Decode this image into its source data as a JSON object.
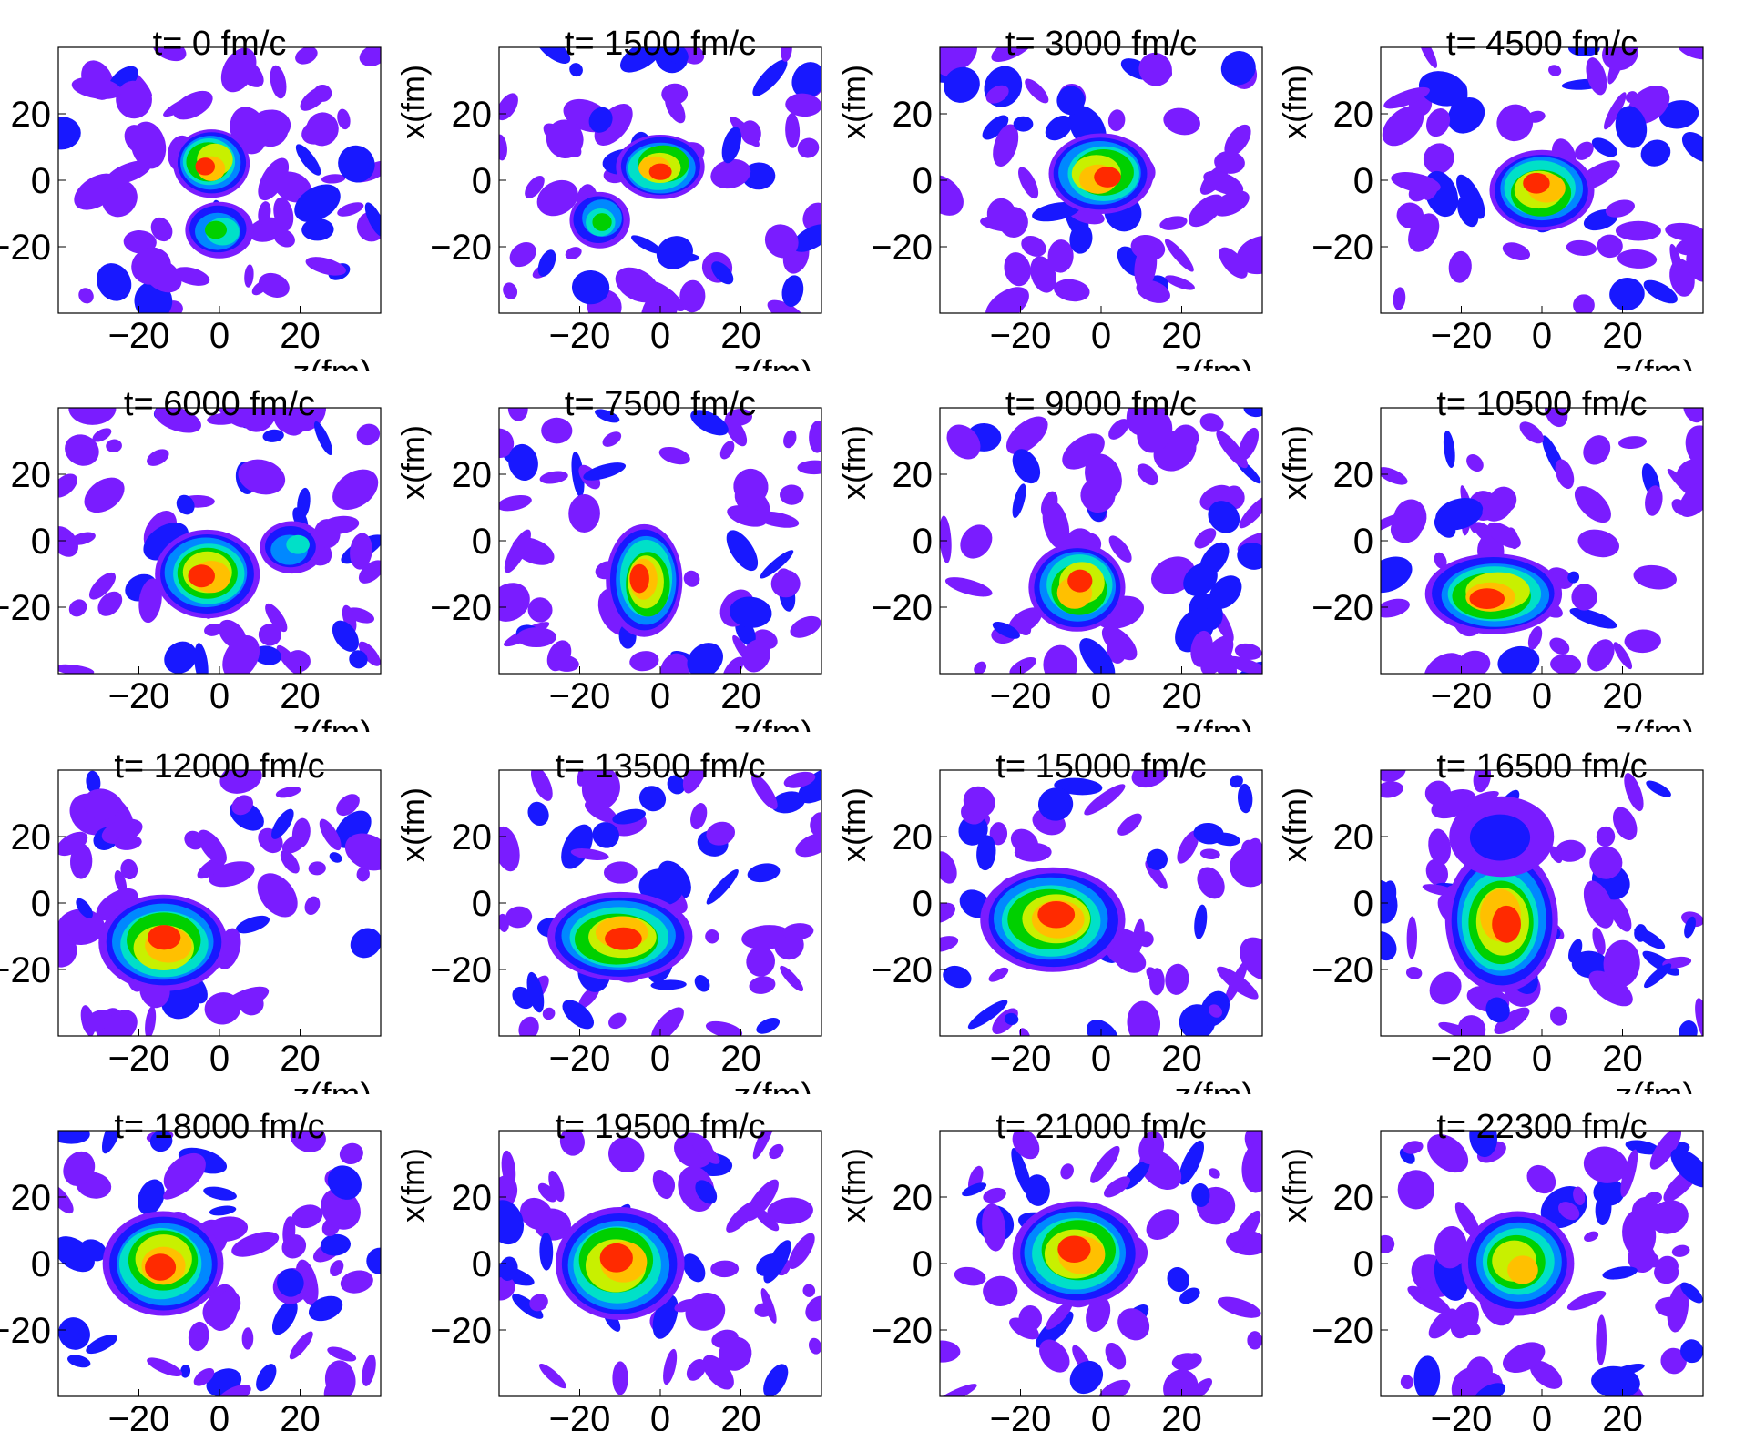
{
  "chart_data": {
    "type": "heatmap",
    "rows": 4,
    "cols": 4,
    "xlabel": "z(fm)",
    "ylabel": "x(fm)",
    "xlim": [
      -40,
      40
    ],
    "ylim": [
      -40,
      40
    ],
    "xticks": [
      "−20",
      "0",
      "20"
    ],
    "yticks": [
      "20",
      "0",
      "−20"
    ],
    "colors": {
      "level1": "#7a1cff",
      "level2": "#1818ff",
      "level3": "#0088ff",
      "level4": "#00e0c8",
      "level5": "#00d000",
      "level6": "#c8f000",
      "level7": "#ffc000",
      "level8": "#ff2a00"
    },
    "panels": [
      {
        "title": "t= 0 fm/c",
        "blobs": [
          {
            "z": -2,
            "x": 5,
            "w": 13,
            "h": 11,
            "peak": 8
          },
          {
            "z": 0,
            "x": -15,
            "w": 11,
            "h": 8,
            "peak": 5
          }
        ]
      },
      {
        "title": "t= 1500 fm/c",
        "blobs": [
          {
            "z": 0,
            "x": 4,
            "w": 16,
            "h": 10,
            "peak": 8
          },
          {
            "z": -15,
            "x": -12,
            "w": 9,
            "h": 8,
            "peak": 5
          }
        ]
      },
      {
        "title": "t= 3000 fm/c",
        "blobs": [
          {
            "z": 0,
            "x": 2,
            "w": 20,
            "h": 14,
            "peak": 8
          }
        ]
      },
      {
        "title": "t= 4500 fm/c",
        "blobs": [
          {
            "z": 0,
            "x": -3,
            "w": 20,
            "h": 14,
            "peak": 8
          }
        ]
      },
      {
        "title": "t= 6000 fm/c",
        "blobs": [
          {
            "z": -3,
            "x": -10,
            "w": 20,
            "h": 16,
            "peak": 8
          },
          {
            "z": 18,
            "x": -2,
            "w": 10,
            "h": 7,
            "peak": 4
          }
        ]
      },
      {
        "title": "t= 7500 fm/c",
        "blobs": [
          {
            "z": -4,
            "x": -12,
            "w": 13,
            "h": 22,
            "peak": 8
          }
        ]
      },
      {
        "title": "t= 9000 fm/c",
        "blobs": [
          {
            "z": -6,
            "x": -14,
            "w": 18,
            "h": 16,
            "peak": 8
          }
        ]
      },
      {
        "title": "t= 10500 fm/c",
        "blobs": [
          {
            "z": -12,
            "x": -16,
            "w": 28,
            "h": 14,
            "peak": 8
          }
        ]
      },
      {
        "title": "t= 12000 fm/c",
        "blobs": [
          {
            "z": -14,
            "x": -12,
            "w": 26,
            "h": 18,
            "peak": 8
          }
        ]
      },
      {
        "title": "t= 13500 fm/c",
        "blobs": [
          {
            "z": -10,
            "x": -10,
            "w": 30,
            "h": 16,
            "peak": 8
          }
        ]
      },
      {
        "title": "t= 15000 fm/c",
        "blobs": [
          {
            "z": -12,
            "x": -5,
            "w": 30,
            "h": 20,
            "peak": 8
          }
        ]
      },
      {
        "title": "t= 16500 fm/c",
        "blobs": [
          {
            "z": -10,
            "x": -5,
            "w": 22,
            "h": 30,
            "peak": 8
          },
          {
            "z": -10,
            "x": 20,
            "w": 20,
            "h": 14,
            "peak": 2
          }
        ]
      },
      {
        "title": "t= 18000 fm/c",
        "blobs": [
          {
            "z": -14,
            "x": 0,
            "w": 24,
            "h": 20,
            "peak": 8
          }
        ]
      },
      {
        "title": "t= 19500 fm/c",
        "blobs": [
          {
            "z": -10,
            "x": 0,
            "w": 26,
            "h": 22,
            "peak": 8
          }
        ]
      },
      {
        "title": "t= 21000 fm/c",
        "blobs": [
          {
            "z": -6,
            "x": 3,
            "w": 26,
            "h": 20,
            "peak": 8
          }
        ]
      },
      {
        "title": "t= 22300 fm/c",
        "blobs": [
          {
            "z": -6,
            "x": 0,
            "w": 22,
            "h": 20,
            "peak": 7
          }
        ]
      }
    ]
  }
}
